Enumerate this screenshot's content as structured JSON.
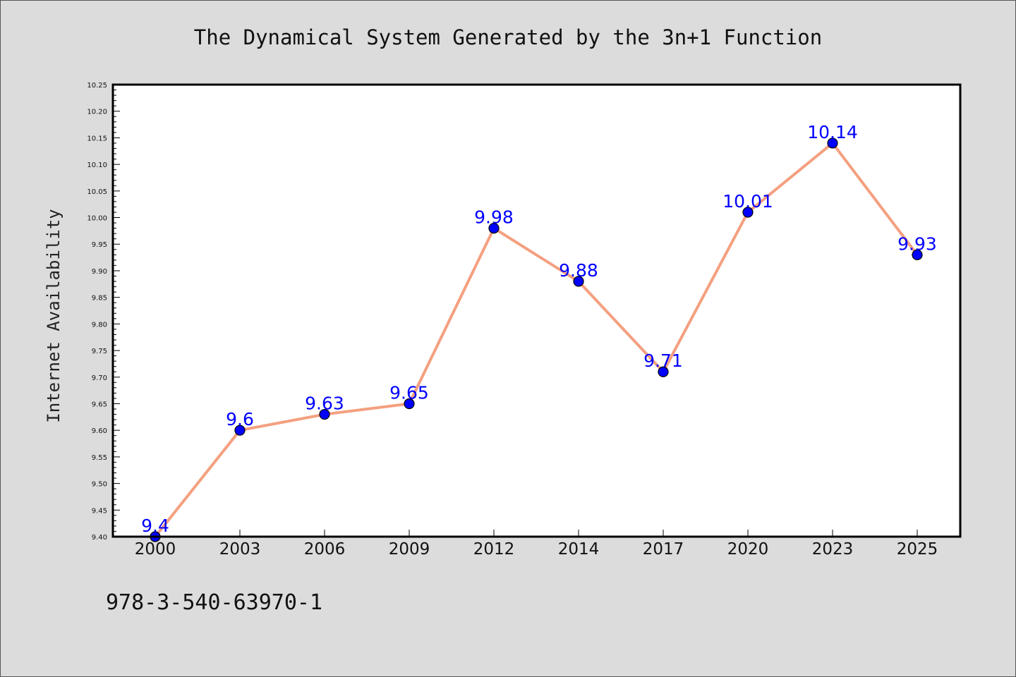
{
  "chart_data": {
    "type": "line",
    "title": "The Dynamical System Generated by the 3n+1 Function",
    "xlabel": "",
    "ylabel": "Internet Availability",
    "categories": [
      "2000",
      "2003",
      "2006",
      "2009",
      "2012",
      "2014",
      "2017",
      "2020",
      "2023",
      "2025"
    ],
    "values": [
      9.4,
      9.6,
      9.63,
      9.65,
      9.98,
      9.88,
      9.71,
      10.01,
      10.14,
      9.93
    ],
    "value_labels": [
      "9.4",
      "9.6",
      "9.63",
      "9.65",
      "9.98",
      "9.88",
      "9.71",
      "10.01",
      "10.14",
      "9.93"
    ],
    "ylim": [
      9.4,
      10.25
    ],
    "yticks": [
      "9.40",
      "9.45",
      "9.50",
      "9.55",
      "9.60",
      "9.65",
      "9.70",
      "9.75",
      "9.80",
      "9.85",
      "9.90",
      "9.95",
      "10.00",
      "10.05",
      "10.10",
      "10.15",
      "10.20",
      "10.25"
    ],
    "grid": false,
    "line_color": "#f4a080",
    "marker_color": "#0000ff",
    "label_color": "#0000ff"
  },
  "footer": {
    "isbn": "978-3-540-63970-1"
  }
}
